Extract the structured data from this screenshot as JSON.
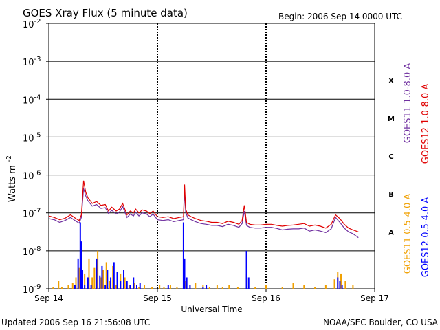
{
  "chart_data": {
    "type": "line",
    "title": "GOES Xray Flux (5 minute data)",
    "begin_label": "Begin:  2006 Sep 14 0000 UTC",
    "xlabel": "Universal Time",
    "ylabel": "Watts m",
    "ylabel_exponent": "-2",
    "updated": "Updated 2006 Sep 16 21:56:08 UTC",
    "credit": "NOAA/SEC Boulder, CO USA",
    "y_scale": "log",
    "ylim": [
      1e-09,
      0.01
    ],
    "xlim_days": [
      0,
      3
    ],
    "x_ticks": [
      "Sep 14",
      "Sep 15",
      "Sep 16",
      "Sep 17"
    ],
    "y_ticks": [
      {
        "base": "10",
        "exp": "-2",
        "value": -2
      },
      {
        "base": "10",
        "exp": "-3",
        "value": -3
      },
      {
        "base": "10",
        "exp": "-4",
        "value": -4
      },
      {
        "base": "10",
        "exp": "-5",
        "value": -5
      },
      {
        "base": "10",
        "exp": "-6",
        "value": -6
      },
      {
        "base": "10",
        "exp": "-7",
        "value": -7
      },
      {
        "base": "10",
        "exp": "-8",
        "value": -8
      },
      {
        "base": "10",
        "exp": "-9",
        "value": -9
      }
    ],
    "flare_classes": [
      {
        "label": "X",
        "value": -3.5
      },
      {
        "label": "M",
        "value": -4.5
      },
      {
        "label": "C",
        "value": -5.5
      },
      {
        "label": "B",
        "value": -6.5
      },
      {
        "label": "A",
        "value": -7.5
      }
    ],
    "legend": [
      {
        "label": "GOES11 1.0-8.0 A",
        "color": "#7030A0"
      },
      {
        "label": "GOES12 1.0-8.0 A",
        "color": "#E00000"
      },
      {
        "label": "GOES11 0.5-4.0 A",
        "color": "#F0A000"
      },
      {
        "label": "GOES12 0.5-4.0 A",
        "color": "#0000FF"
      }
    ],
    "series": [
      {
        "name": "GOES12 1.0-8.0 A",
        "color": "#E00000",
        "kind": "line",
        "points": [
          [
            0.0,
            -7.08
          ],
          [
            0.05,
            -7.12
          ],
          [
            0.1,
            -7.18
          ],
          [
            0.15,
            -7.14
          ],
          [
            0.2,
            -7.05
          ],
          [
            0.25,
            -7.15
          ],
          [
            0.28,
            -7.2
          ],
          [
            0.3,
            -7.05
          ],
          [
            0.32,
            -6.15
          ],
          [
            0.34,
            -6.45
          ],
          [
            0.36,
            -6.6
          ],
          [
            0.4,
            -6.75
          ],
          [
            0.44,
            -6.7
          ],
          [
            0.48,
            -6.8
          ],
          [
            0.52,
            -6.78
          ],
          [
            0.55,
            -6.95
          ],
          [
            0.58,
            -6.85
          ],
          [
            0.62,
            -6.95
          ],
          [
            0.65,
            -6.9
          ],
          [
            0.68,
            -6.75
          ],
          [
            0.7,
            -6.9
          ],
          [
            0.72,
            -7.05
          ],
          [
            0.75,
            -6.95
          ],
          [
            0.78,
            -7.0
          ],
          [
            0.8,
            -6.9
          ],
          [
            0.83,
            -7.0
          ],
          [
            0.86,
            -6.92
          ],
          [
            0.9,
            -6.95
          ],
          [
            0.93,
            -7.02
          ],
          [
            0.96,
            -6.95
          ],
          [
            1.0,
            -7.1
          ],
          [
            1.05,
            -7.12
          ],
          [
            1.1,
            -7.1
          ],
          [
            1.15,
            -7.15
          ],
          [
            1.2,
            -7.12
          ],
          [
            1.24,
            -7.1
          ],
          [
            1.25,
            -6.25
          ],
          [
            1.26,
            -6.9
          ],
          [
            1.28,
            -7.05
          ],
          [
            1.31,
            -7.1
          ],
          [
            1.35,
            -7.15
          ],
          [
            1.4,
            -7.2
          ],
          [
            1.45,
            -7.22
          ],
          [
            1.5,
            -7.25
          ],
          [
            1.55,
            -7.25
          ],
          [
            1.6,
            -7.28
          ],
          [
            1.65,
            -7.22
          ],
          [
            1.7,
            -7.25
          ],
          [
            1.75,
            -7.3
          ],
          [
            1.78,
            -7.2
          ],
          [
            1.8,
            -6.8
          ],
          [
            1.82,
            -7.25
          ],
          [
            1.85,
            -7.3
          ],
          [
            1.9,
            -7.32
          ],
          [
            1.95,
            -7.32
          ],
          [
            2.0,
            -7.3
          ],
          [
            2.05,
            -7.3
          ],
          [
            2.1,
            -7.33
          ],
          [
            2.15,
            -7.35
          ],
          [
            2.2,
            -7.33
          ],
          [
            2.25,
            -7.32
          ],
          [
            2.3,
            -7.3
          ],
          [
            2.35,
            -7.28
          ],
          [
            2.4,
            -7.35
          ],
          [
            2.45,
            -7.32
          ],
          [
            2.5,
            -7.35
          ],
          [
            2.55,
            -7.4
          ],
          [
            2.6,
            -7.3
          ],
          [
            2.64,
            -7.05
          ],
          [
            2.68,
            -7.15
          ],
          [
            2.72,
            -7.3
          ],
          [
            2.76,
            -7.4
          ],
          [
            2.8,
            -7.45
          ],
          [
            2.85,
            -7.5
          ]
        ]
      },
      {
        "name": "GOES11 1.0-8.0 A",
        "color": "#7030A0",
        "kind": "line",
        "points": [
          [
            0.0,
            -7.15
          ],
          [
            0.05,
            -7.18
          ],
          [
            0.1,
            -7.25
          ],
          [
            0.15,
            -7.2
          ],
          [
            0.2,
            -7.12
          ],
          [
            0.25,
            -7.22
          ],
          [
            0.28,
            -7.27
          ],
          [
            0.3,
            -7.12
          ],
          [
            0.32,
            -6.35
          ],
          [
            0.34,
            -6.55
          ],
          [
            0.36,
            -6.68
          ],
          [
            0.4,
            -6.82
          ],
          [
            0.44,
            -6.78
          ],
          [
            0.48,
            -6.88
          ],
          [
            0.52,
            -6.86
          ],
          [
            0.55,
            -7.02
          ],
          [
            0.58,
            -6.93
          ],
          [
            0.62,
            -7.03
          ],
          [
            0.65,
            -6.98
          ],
          [
            0.68,
            -6.83
          ],
          [
            0.7,
            -6.98
          ],
          [
            0.72,
            -7.12
          ],
          [
            0.75,
            -7.03
          ],
          [
            0.78,
            -7.08
          ],
          [
            0.8,
            -6.98
          ],
          [
            0.83,
            -7.08
          ],
          [
            0.86,
            -7.0
          ],
          [
            0.9,
            -7.03
          ],
          [
            0.93,
            -7.1
          ],
          [
            0.96,
            -7.03
          ],
          [
            1.0,
            -7.18
          ],
          [
            1.05,
            -7.2
          ],
          [
            1.1,
            -7.18
          ],
          [
            1.15,
            -7.23
          ],
          [
            1.2,
            -7.2
          ],
          [
            1.24,
            -7.18
          ],
          [
            1.25,
            -6.4
          ],
          [
            1.26,
            -6.98
          ],
          [
            1.28,
            -7.13
          ],
          [
            1.31,
            -7.18
          ],
          [
            1.35,
            -7.23
          ],
          [
            1.4,
            -7.28
          ],
          [
            1.45,
            -7.3
          ],
          [
            1.5,
            -7.33
          ],
          [
            1.55,
            -7.33
          ],
          [
            1.6,
            -7.36
          ],
          [
            1.65,
            -7.3
          ],
          [
            1.7,
            -7.33
          ],
          [
            1.75,
            -7.38
          ],
          [
            1.78,
            -7.28
          ],
          [
            1.8,
            -6.95
          ],
          [
            1.82,
            -7.33
          ],
          [
            1.85,
            -7.38
          ],
          [
            1.9,
            -7.4
          ],
          [
            1.95,
            -7.4
          ],
          [
            2.0,
            -7.38
          ],
          [
            2.05,
            -7.38
          ],
          [
            2.1,
            -7.41
          ],
          [
            2.15,
            -7.45
          ],
          [
            2.2,
            -7.43
          ],
          [
            2.25,
            -7.42
          ],
          [
            2.3,
            -7.42
          ],
          [
            2.35,
            -7.4
          ],
          [
            2.4,
            -7.48
          ],
          [
            2.45,
            -7.45
          ],
          [
            2.5,
            -7.48
          ],
          [
            2.55,
            -7.52
          ],
          [
            2.6,
            -7.42
          ],
          [
            2.64,
            -7.12
          ],
          [
            2.68,
            -7.25
          ],
          [
            2.72,
            -7.4
          ],
          [
            2.76,
            -7.5
          ],
          [
            2.8,
            -7.55
          ],
          [
            2.85,
            -7.65
          ]
        ]
      },
      {
        "name": "GOES12 0.5-4.0 A",
        "color": "#0000FF",
        "kind": "bars",
        "points": [
          [
            0.24,
            -8.9
          ],
          [
            0.27,
            -8.2
          ],
          [
            0.29,
            -7.25
          ],
          [
            0.3,
            -7.75
          ],
          [
            0.31,
            -8.5
          ],
          [
            0.33,
            -8.9
          ],
          [
            0.36,
            -8.7
          ],
          [
            0.39,
            -8.9
          ],
          [
            0.44,
            -8.2
          ],
          [
            0.47,
            -8.65
          ],
          [
            0.49,
            -8.4
          ],
          [
            0.52,
            -8.9
          ],
          [
            0.54,
            -8.5
          ],
          [
            0.57,
            -8.7
          ],
          [
            0.6,
            -8.3
          ],
          [
            0.63,
            -8.55
          ],
          [
            0.66,
            -8.8
          ],
          [
            0.69,
            -8.5
          ],
          [
            0.72,
            -8.8
          ],
          [
            0.75,
            -8.9
          ],
          [
            0.78,
            -8.7
          ],
          [
            0.81,
            -8.9
          ],
          [
            0.84,
            -8.85
          ],
          [
            1.1,
            -8.9
          ],
          [
            1.24,
            -7.25
          ],
          [
            1.25,
            -8.2
          ],
          [
            1.27,
            -8.7
          ],
          [
            1.3,
            -8.9
          ],
          [
            1.42,
            -8.95
          ],
          [
            1.45,
            -8.9
          ],
          [
            1.82,
            -8.0
          ],
          [
            1.84,
            -8.7
          ],
          [
            2.66,
            -8.7
          ],
          [
            2.68,
            -8.8
          ],
          [
            2.7,
            -8.9
          ]
        ]
      },
      {
        "name": "GOES11 0.5-4.0 A",
        "color": "#F0A000",
        "kind": "bars",
        "points": [
          [
            0.04,
            -8.95
          ],
          [
            0.09,
            -8.8
          ],
          [
            0.12,
            -8.95
          ],
          [
            0.18,
            -8.9
          ],
          [
            0.22,
            -8.85
          ],
          [
            0.25,
            -8.7
          ],
          [
            0.28,
            -8.45
          ],
          [
            0.33,
            -8.6
          ],
          [
            0.37,
            -8.2
          ],
          [
            0.4,
            -8.7
          ],
          [
            0.42,
            -8.45
          ],
          [
            0.45,
            -8.0
          ],
          [
            0.48,
            -8.7
          ],
          [
            0.5,
            -8.5
          ],
          [
            0.53,
            -8.3
          ],
          [
            0.56,
            -8.8
          ],
          [
            0.59,
            -8.4
          ],
          [
            0.62,
            -8.9
          ],
          [
            0.66,
            -8.6
          ],
          [
            0.7,
            -8.7
          ],
          [
            0.74,
            -8.9
          ],
          [
            0.79,
            -8.85
          ],
          [
            0.83,
            -8.95
          ],
          [
            0.88,
            -8.9
          ],
          [
            0.95,
            -8.95
          ],
          [
            1.02,
            -8.9
          ],
          [
            1.06,
            -8.95
          ],
          [
            1.12,
            -8.9
          ],
          [
            1.18,
            -8.95
          ],
          [
            1.26,
            -8.8
          ],
          [
            1.3,
            -8.9
          ],
          [
            1.35,
            -8.85
          ],
          [
            1.42,
            -8.9
          ],
          [
            1.48,
            -8.95
          ],
          [
            1.55,
            -8.9
          ],
          [
            1.6,
            -8.95
          ],
          [
            1.66,
            -8.9
          ],
          [
            1.74,
            -8.95
          ],
          [
            1.82,
            -8.6
          ],
          [
            1.9,
            -8.95
          ],
          [
            2.0,
            -8.9
          ],
          [
            2.15,
            -8.95
          ],
          [
            2.25,
            -8.85
          ],
          [
            2.35,
            -8.9
          ],
          [
            2.45,
            -8.95
          ],
          [
            2.55,
            -8.9
          ],
          [
            2.63,
            -8.75
          ],
          [
            2.66,
            -8.55
          ],
          [
            2.69,
            -8.6
          ],
          [
            2.73,
            -8.8
          ],
          [
            2.8,
            -8.9
          ]
        ]
      }
    ]
  }
}
